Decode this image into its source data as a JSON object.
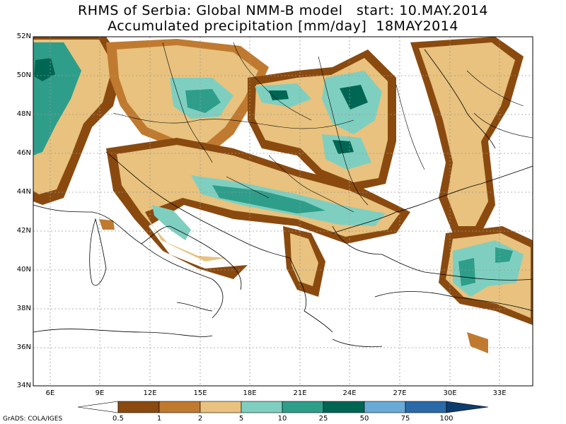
{
  "title": {
    "line1": "RHMS of Serbia: Global NMM-B model   start: 10.MAY.2014",
    "line2": "Accumulated precipitation [mm/day]  18MAY2014"
  },
  "axes": {
    "lon_labels": [
      "6E",
      "9E",
      "12E",
      "15E",
      "18E",
      "21E",
      "24E",
      "27E",
      "30E",
      "33E"
    ],
    "lat_labels": [
      "52N",
      "50N",
      "48N",
      "46N",
      "44N",
      "42N",
      "40N",
      "38N",
      "36N",
      "34N"
    ],
    "lon_range": [
      5,
      35
    ],
    "lat_range": [
      34,
      52
    ]
  },
  "colorbar": {
    "levels": [
      "0.5",
      "1",
      "2",
      "5",
      "10",
      "25",
      "50",
      "75",
      "100"
    ],
    "colors": [
      "#ffffff",
      "#8a4a0f",
      "#c07a30",
      "#e8c27e",
      "#7fcfc0",
      "#2e9e8a",
      "#006654",
      "#6aaad6",
      "#2a6aa8",
      "#0c3d6e"
    ]
  },
  "credit": "GrADS: COLA/IGES"
}
